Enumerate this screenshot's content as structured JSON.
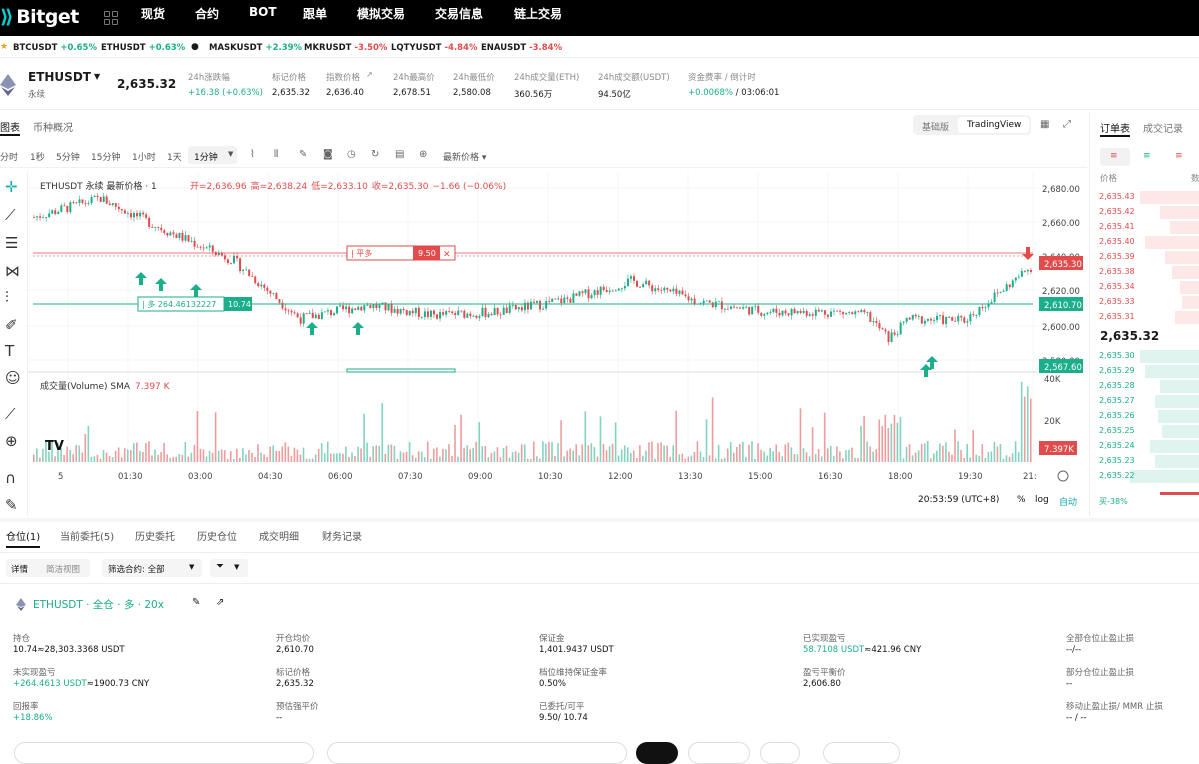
{
  "nav": {
    "logo": "Bitget",
    "items": [
      "现货",
      "合约",
      "BOT",
      "跟单",
      "模拟交易",
      "交易信息",
      "链上交易"
    ]
  },
  "ticker": [
    {
      "sym": "BTCUSDT",
      "chg": "+0.65%",
      "dir": "up"
    },
    {
      "sym": "ETHUSDT",
      "chg": "+0.63%",
      "dir": "up"
    },
    {
      "sym": "MASKUSDT",
      "chg": "+2.39%",
      "dir": "up"
    },
    {
      "sym": "MKRUSDT",
      "chg": "-3.50%",
      "dir": "dn"
    },
    {
      "sym": "LQTYUSDT",
      "chg": "-4.84%",
      "dir": "dn"
    },
    {
      "sym": "ENAUSDT",
      "chg": "-3.84%",
      "dir": "dn"
    }
  ],
  "info": {
    "symbol": "ETHUSDT",
    "sub": "永续",
    "price": "2,635.32",
    "stats": [
      {
        "label": "24h涨跌幅",
        "value": "+16.38 (+0.63%)",
        "dir": "up"
      },
      {
        "label": "标记价格",
        "value": "2,635.32"
      },
      {
        "label": "指数价格",
        "value": "2,636.40"
      },
      {
        "label": "24h最高价",
        "value": "2,678.51"
      },
      {
        "label": "24h最低价",
        "value": "2,580.08"
      },
      {
        "label": "24h成交量(ETH)",
        "value": "360.56万"
      },
      {
        "label": "24h成交额(USDT)",
        "value": "94.50亿"
      },
      {
        "label": "资金费率 / 倒计时",
        "value": "+0.0068%",
        "value2": "/ 03:06:01",
        "dir": "up"
      }
    ]
  },
  "chart_tabs": {
    "chart": "图表",
    "overview": "币种概况",
    "basic": "基础版",
    "tv": "TradingView"
  },
  "intervals": [
    "分时",
    "1秒",
    "5分钟",
    "15分钟",
    "1小时",
    "1天",
    "1分钟"
  ],
  "price_type": "最新价格",
  "legend": {
    "title": "ETHUSDT 永续 最新价格 · 1",
    "open_l": "开=",
    "open": "2,636.96",
    "high_l": "高=",
    "high": "2,638.24",
    "low_l": "低=",
    "low": "2,633.10",
    "close_l": "收=",
    "close": "2,635.30",
    "chg": "−1.66 (−0.06%)"
  },
  "vol_legend": {
    "label": "成交量(Volume) SMA",
    "value": "7.397 K"
  },
  "axis": {
    "y": [
      "2,680.00",
      "2,660.00",
      "2,640.00",
      "2,620.00",
      "2,600.00",
      "2,580.00"
    ],
    "vol_y": [
      "40K",
      "20K"
    ],
    "x": [
      "5",
      "01:30",
      "03:00",
      "04:30",
      "06:00",
      "07:30",
      "09:00",
      "10:30",
      "12:00",
      "13:30",
      "15:00",
      "16:30",
      "18:00",
      "19:30",
      "21:"
    ]
  },
  "tags": {
    "last": "2,635.30",
    "entry": "2,610.70",
    "liq": "2,567.60",
    "vol": "7.397K"
  },
  "position_line": {
    "label": "| 多 264.46132227",
    "qty": "10.74"
  },
  "order_line": {
    "label": "| 平多",
    "qty": "9.50",
    "close": "✕"
  },
  "bottom": {
    "time": "20:53:59 (UTC+8)",
    "pct": "%",
    "log": "log",
    "auto": "自动"
  },
  "chart_data": {
    "type": "candlestick",
    "symbol": "ETHUSDT",
    "interval": "1分钟",
    "ylim": [
      2570,
      2688
    ],
    "x": [
      "01:30",
      "03:00",
      "04:30",
      "06:00",
      "07:30",
      "09:00",
      "10:30",
      "12:00",
      "13:30",
      "15:00",
      "16:30",
      "18:00",
      "19:30"
    ],
    "close": [
      2655,
      2638,
      2604,
      2612,
      2606,
      2608,
      2615,
      2626,
      2614,
      2608,
      2608,
      2604,
      2603
    ],
    "volume_sma": 7397
  },
  "orderbook": {
    "tabs": [
      "订单表",
      "成交记录"
    ],
    "col_price": "价格",
    "col_qty": "数",
    "asks": [
      "2,635.43",
      "2,635.42",
      "2,635.41",
      "2,635.40",
      "2,635.39",
      "2,635.38",
      "2,635.34",
      "2,635.33",
      "2,635.31"
    ],
    "mid": "2,635.32",
    "bids": [
      "2,635.30",
      "2,635.29",
      "2,635.28",
      "2,635.27",
      "2,635.26",
      "2,635.25",
      "2,635.24",
      "2,635.23",
      "2,635.22"
    ],
    "buy_pct": "买-38%"
  },
  "pos_tabs": [
    "仓位(1)",
    "当前委托(5)",
    "历史委托",
    "历史仓位",
    "成交明细",
    "财务记录"
  ],
  "pos_filters": {
    "detail": "详情",
    "simple": "简洁视图",
    "filter_label": "筛选合约: 全部"
  },
  "position": {
    "title": "ETHUSDT · 全仓 · 多 · 20x",
    "fields": [
      {
        "label": "持仓",
        "value": "10.74≈28,303.3368 USDT"
      },
      {
        "label": "开仓均价",
        "value": "2,610.70"
      },
      {
        "label": "保证金",
        "value": "1,401.9437 USDT"
      },
      {
        "label": "已实现盈亏",
        "value": "58.7108 USDT",
        "value2": "≈421.96 CNY"
      },
      {
        "label": "全部仓位止盈止损",
        "value": "--/--"
      },
      {
        "label": "未实现盈亏",
        "value": "+264.4613 USDT",
        "value2": "≈1900.73 CNY"
      },
      {
        "label": "标记价格",
        "value": "2,635.32"
      },
      {
        "label": "档位维持保证金率",
        "value": "0.50%"
      },
      {
        "label": "盈亏平衡价",
        "value": "2,606.80"
      },
      {
        "label": "部分仓位止盈止损",
        "value": "--"
      },
      {
        "label": "回报率",
        "value": "+18.86%"
      },
      {
        "label": "预估强平价",
        "value": "--"
      },
      {
        "label": "已委托/可平",
        "value": "9.50/ 10.74"
      },
      {
        "label": "",
        "value": ""
      },
      {
        "label": "移动止盈止损/ MMR 止损",
        "value": "-- / --"
      }
    ]
  },
  "colors": {
    "up": "#1bae8a",
    "down": "#e24b4b",
    "brand": "#00d1d1"
  }
}
